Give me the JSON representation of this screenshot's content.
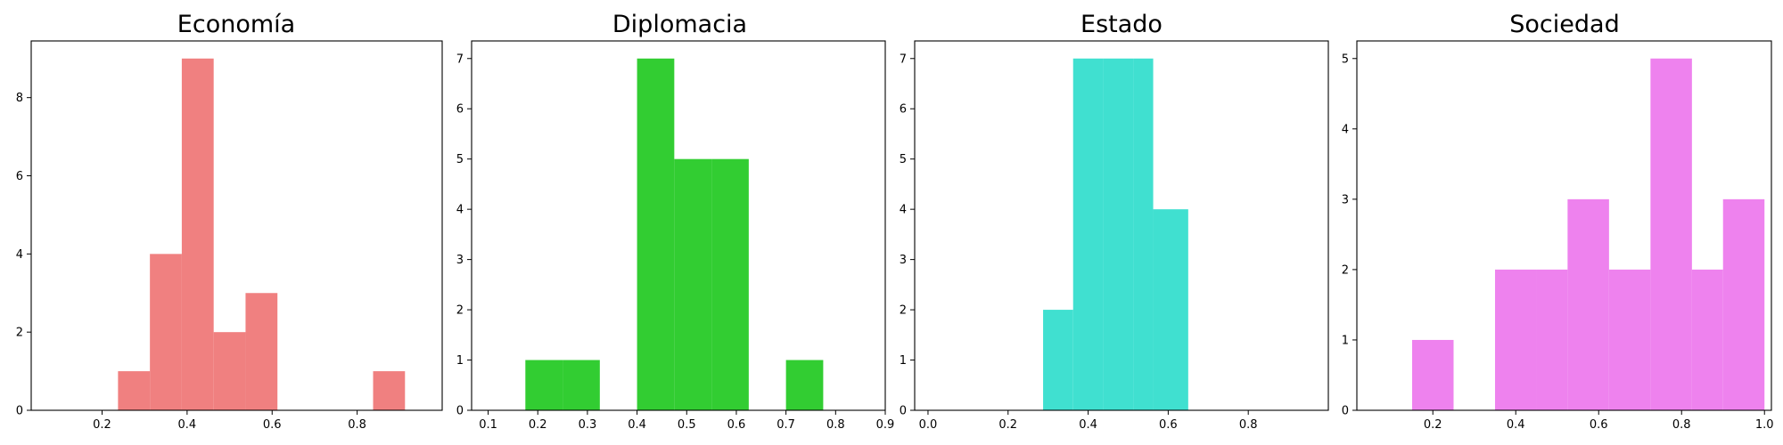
{
  "chart_data": [
    {
      "type": "bar",
      "title": "Economía",
      "color": "#f08080",
      "xlim": [
        0.0333,
        1.0
      ],
      "ylim": [
        0,
        9.45
      ],
      "xticks": [
        0.2,
        0.4,
        0.6,
        0.8
      ],
      "xtick_labels": [
        "0.2",
        "0.4",
        "0.6",
        "0.8"
      ],
      "yticks": [
        0,
        2,
        4,
        6,
        8
      ],
      "ytick_labels": [
        "0",
        "2",
        "4",
        "6",
        "8"
      ],
      "bins": [
        {
          "x0": 0.2375,
          "x1": 0.3125,
          "count": 1
        },
        {
          "x0": 0.3125,
          "x1": 0.3875,
          "count": 4
        },
        {
          "x0": 0.3875,
          "x1": 0.4625,
          "count": 9
        },
        {
          "x0": 0.4625,
          "x1": 0.5375,
          "count": 2
        },
        {
          "x0": 0.5375,
          "x1": 0.6125,
          "count": 3
        },
        {
          "x0": 0.8375,
          "x1": 0.9125,
          "count": 1
        }
      ]
    },
    {
      "type": "bar",
      "title": "Diplomacia",
      "color": "#32cd32",
      "xlim": [
        0.0667,
        0.9
      ],
      "ylim": [
        0,
        7.35
      ],
      "xticks": [
        0.1,
        0.2,
        0.3,
        0.4,
        0.5,
        0.6,
        0.7,
        0.8,
        0.9
      ],
      "xtick_labels": [
        "0.1",
        "0.2",
        "0.3",
        "0.4",
        "0.5",
        "0.6",
        "0.7",
        "0.8",
        "0.9"
      ],
      "yticks": [
        0,
        1,
        2,
        3,
        4,
        5,
        6,
        7
      ],
      "ytick_labels": [
        "0",
        "1",
        "2",
        "3",
        "4",
        "5",
        "6",
        "7"
      ],
      "bins": [
        {
          "x0": 0.175,
          "x1": 0.25,
          "count": 1
        },
        {
          "x0": 0.25,
          "x1": 0.325,
          "count": 1
        },
        {
          "x0": 0.4,
          "x1": 0.475,
          "count": 7
        },
        {
          "x0": 0.475,
          "x1": 0.55,
          "count": 5
        },
        {
          "x0": 0.55,
          "x1": 0.625,
          "count": 5
        },
        {
          "x0": 0.7,
          "x1": 0.775,
          "count": 1
        }
      ]
    },
    {
      "type": "bar",
      "title": "Estado",
      "color": "#40e0d0",
      "xlim": [
        -0.0333,
        1.0
      ],
      "ylim": [
        0,
        7.35
      ],
      "xticks": [
        0.0,
        0.2,
        0.4,
        0.6,
        0.8
      ],
      "xtick_labels": [
        "0.0",
        "0.2",
        "0.4",
        "0.6",
        "0.8"
      ],
      "yticks": [
        0,
        1,
        2,
        3,
        4,
        5,
        6,
        7
      ],
      "ytick_labels": [
        "0",
        "1",
        "2",
        "3",
        "4",
        "5",
        "6",
        "7"
      ],
      "bins": [
        {
          "x0": 0.2875,
          "x1": 0.3625,
          "count": 2
        },
        {
          "x0": 0.3625,
          "x1": 0.4375,
          "count": 7
        },
        {
          "x0": 0.4375,
          "x1": 0.5125,
          "count": 7
        },
        {
          "x0": 0.5125,
          "x1": 0.5625,
          "count": 7
        },
        {
          "x0": 0.5625,
          "x1": 0.65,
          "count": 4
        }
      ]
    },
    {
      "type": "bar",
      "title": "Sociedad",
      "color": "#ee82ee",
      "xlim": [
        0.0167,
        1.0167
      ],
      "ylim": [
        0,
        5.25
      ],
      "xticks": [
        0.2,
        0.4,
        0.6,
        0.8,
        1.0
      ],
      "xtick_labels": [
        "0.2",
        "0.4",
        "0.6",
        "0.8",
        "1.0"
      ],
      "yticks": [
        0,
        1,
        2,
        3,
        4,
        5
      ],
      "ytick_labels": [
        "0",
        "1",
        "2",
        "3",
        "4",
        "5"
      ],
      "bins": [
        {
          "x0": 0.15,
          "x1": 0.25,
          "count": 1
        },
        {
          "x0": 0.35,
          "x1": 0.45,
          "count": 2
        },
        {
          "x0": 0.45,
          "x1": 0.525,
          "count": 2
        },
        {
          "x0": 0.525,
          "x1": 0.625,
          "count": 3
        },
        {
          "x0": 0.625,
          "x1": 0.725,
          "count": 2
        },
        {
          "x0": 0.725,
          "x1": 0.825,
          "count": 5
        },
        {
          "x0": 0.825,
          "x1": 0.9,
          "count": 2
        },
        {
          "x0": 0.9,
          "x1": 1.0,
          "count": 3
        }
      ]
    }
  ]
}
